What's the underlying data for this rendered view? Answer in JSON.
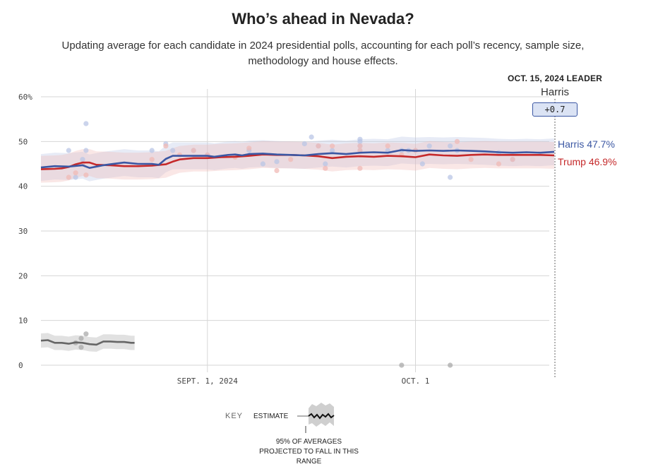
{
  "title": "Who’s ahead in Nevada?",
  "subtitle": "Updating average for each candidate in 2024 presidential polls, accounting for each poll’s recency, sample size, methodology and house effects.",
  "leader": {
    "heading": "OCT. 15, 2024 LEADER",
    "name": "Harris",
    "margin": "+0.7"
  },
  "key": {
    "label": "KEY",
    "estimate": "ESTIMATE",
    "note": "95% OF AVERAGES PROJECTED TO FALL IN THIS RANGE"
  },
  "colors": {
    "harris": "#3b57a3",
    "trump": "#c5292a",
    "other": "#666666"
  },
  "chart_data": {
    "type": "line",
    "title": "Who’s ahead in Nevada?",
    "ylim": [
      0,
      60
    ],
    "yticks": [
      0,
      10,
      20,
      30,
      40,
      50,
      60
    ],
    "ytick_labels": [
      "0",
      "10",
      "20",
      "30",
      "40",
      "50",
      "60%"
    ],
    "xlim": [
      0,
      74
    ],
    "xticks": [
      {
        "x": 24,
        "label": "SEPT. 1, 2024"
      },
      {
        "x": 54,
        "label": "OCT. 1"
      }
    ],
    "series": [
      {
        "name": "Harris",
        "end_label": "Harris 47.7%",
        "color": "#3b57a3",
        "band": 3,
        "points": [
          [
            0,
            44.2
          ],
          [
            2,
            44.5
          ],
          [
            4,
            44.4
          ],
          [
            6,
            44.7
          ],
          [
            7,
            44.1
          ],
          [
            8,
            44.4
          ],
          [
            9,
            44.7
          ],
          [
            10,
            44.9
          ],
          [
            12,
            45.3
          ],
          [
            14,
            45.0
          ],
          [
            16,
            45.0
          ],
          [
            17,
            44.8
          ],
          [
            18,
            46.1
          ],
          [
            19,
            46.8
          ],
          [
            20,
            46.8
          ],
          [
            24,
            46.8
          ],
          [
            25,
            46.6
          ],
          [
            26,
            46.8
          ],
          [
            27,
            47.0
          ],
          [
            28,
            47.1
          ],
          [
            29,
            46.9
          ],
          [
            30,
            47.2
          ],
          [
            32,
            47.3
          ],
          [
            34,
            47.1
          ],
          [
            36,
            47.0
          ],
          [
            38,
            46.9
          ],
          [
            40,
            47.2
          ],
          [
            42,
            47.4
          ],
          [
            44,
            47.2
          ],
          [
            46,
            47.5
          ],
          [
            48,
            47.6
          ],
          [
            50,
            47.5
          ],
          [
            52,
            48.1
          ],
          [
            54,
            47.9
          ],
          [
            56,
            48.0
          ],
          [
            58,
            47.9
          ],
          [
            60,
            48.0
          ],
          [
            62,
            47.9
          ],
          [
            64,
            47.8
          ],
          [
            66,
            47.6
          ],
          [
            68,
            47.5
          ],
          [
            70,
            47.6
          ],
          [
            72,
            47.5
          ],
          [
            74,
            47.7
          ]
        ]
      },
      {
        "name": "Trump",
        "end_label": "Trump 46.9%",
        "color": "#c5292a",
        "band": 3,
        "points": [
          [
            0,
            43.8
          ],
          [
            2,
            43.9
          ],
          [
            3,
            44.0
          ],
          [
            4,
            44.3
          ],
          [
            5,
            44.9
          ],
          [
            6,
            45.3
          ],
          [
            7,
            45.3
          ],
          [
            8,
            44.8
          ],
          [
            10,
            44.7
          ],
          [
            12,
            44.5
          ],
          [
            14,
            44.5
          ],
          [
            16,
            44.6
          ],
          [
            18,
            44.9
          ],
          [
            19,
            45.5
          ],
          [
            20,
            46.0
          ],
          [
            22,
            46.3
          ],
          [
            24,
            46.3
          ],
          [
            26,
            46.5
          ],
          [
            28,
            46.6
          ],
          [
            30,
            46.8
          ],
          [
            32,
            47.1
          ],
          [
            34,
            47.0
          ],
          [
            36,
            47.0
          ],
          [
            38,
            46.9
          ],
          [
            40,
            46.7
          ],
          [
            42,
            46.3
          ],
          [
            44,
            46.6
          ],
          [
            46,
            46.7
          ],
          [
            48,
            46.6
          ],
          [
            50,
            46.8
          ],
          [
            52,
            46.7
          ],
          [
            54,
            46.5
          ],
          [
            56,
            47.1
          ],
          [
            58,
            46.9
          ],
          [
            60,
            46.8
          ],
          [
            62,
            47.0
          ],
          [
            64,
            47.1
          ],
          [
            66,
            47.0
          ],
          [
            68,
            47.0
          ],
          [
            70,
            47.0
          ],
          [
            72,
            47.0
          ],
          [
            74,
            46.9
          ]
        ]
      },
      {
        "name": "Other",
        "color": "#666666",
        "band": 1.6,
        "points": [
          [
            0,
            5.5
          ],
          [
            1,
            5.6
          ],
          [
            2,
            5.0
          ],
          [
            3,
            5.0
          ],
          [
            4,
            4.8
          ],
          [
            5,
            5.1
          ],
          [
            6,
            5.0
          ],
          [
            7,
            4.7
          ],
          [
            8,
            4.6
          ],
          [
            9,
            5.3
          ],
          [
            10,
            5.3
          ],
          [
            11,
            5.2
          ],
          [
            12,
            5.2
          ],
          [
            13,
            5.0
          ],
          [
            13.5,
            5.0
          ]
        ]
      }
    ],
    "polls": {
      "Harris": [
        [
          4,
          48
        ],
        [
          5,
          42
        ],
        [
          6,
          46
        ],
        [
          6,
          45
        ],
        [
          6.5,
          54
        ],
        [
          6.5,
          48
        ],
        [
          16,
          48
        ],
        [
          18,
          49.5
        ],
        [
          19,
          48
        ],
        [
          22,
          48
        ],
        [
          24,
          47
        ],
        [
          30,
          48
        ],
        [
          32,
          45
        ],
        [
          34,
          45.5
        ],
        [
          38,
          49.5
        ],
        [
          39,
          51
        ],
        [
          40,
          49
        ],
        [
          41,
          45
        ],
        [
          42,
          48
        ],
        [
          46,
          49
        ],
        [
          46,
          50
        ],
        [
          46,
          50.5
        ],
        [
          46,
          48
        ],
        [
          52,
          48
        ],
        [
          54,
          48
        ],
        [
          56,
          49
        ],
        [
          59,
          49
        ],
        [
          59,
          42
        ],
        [
          60,
          48
        ],
        [
          66,
          47.5
        ],
        [
          68,
          46
        ],
        [
          50,
          48
        ],
        [
          53,
          48
        ],
        [
          55,
          45
        ]
      ],
      "Trump": [
        [
          4,
          42
        ],
        [
          5,
          43
        ],
        [
          6,
          45
        ],
        [
          6.5,
          42.5
        ],
        [
          16,
          46
        ],
        [
          18,
          49
        ],
        [
          20,
          47
        ],
        [
          22,
          48
        ],
        [
          24,
          47
        ],
        [
          28,
          46.5
        ],
        [
          30,
          48.5
        ],
        [
          34,
          43.5
        ],
        [
          36,
          46
        ],
        [
          40,
          49
        ],
        [
          41,
          44
        ],
        [
          42,
          49
        ],
        [
          46,
          44
        ],
        [
          46,
          48
        ],
        [
          46,
          49
        ],
        [
          50,
          49
        ],
        [
          52,
          47
        ],
        [
          54,
          48
        ],
        [
          60,
          50
        ],
        [
          62,
          46
        ],
        [
          66,
          45
        ],
        [
          68,
          46
        ]
      ],
      "Other": [
        [
          5,
          5
        ],
        [
          5.8,
          6
        ],
        [
          5.8,
          4
        ],
        [
          6.5,
          7
        ],
        [
          52,
          0
        ],
        [
          59,
          0
        ]
      ]
    }
  }
}
